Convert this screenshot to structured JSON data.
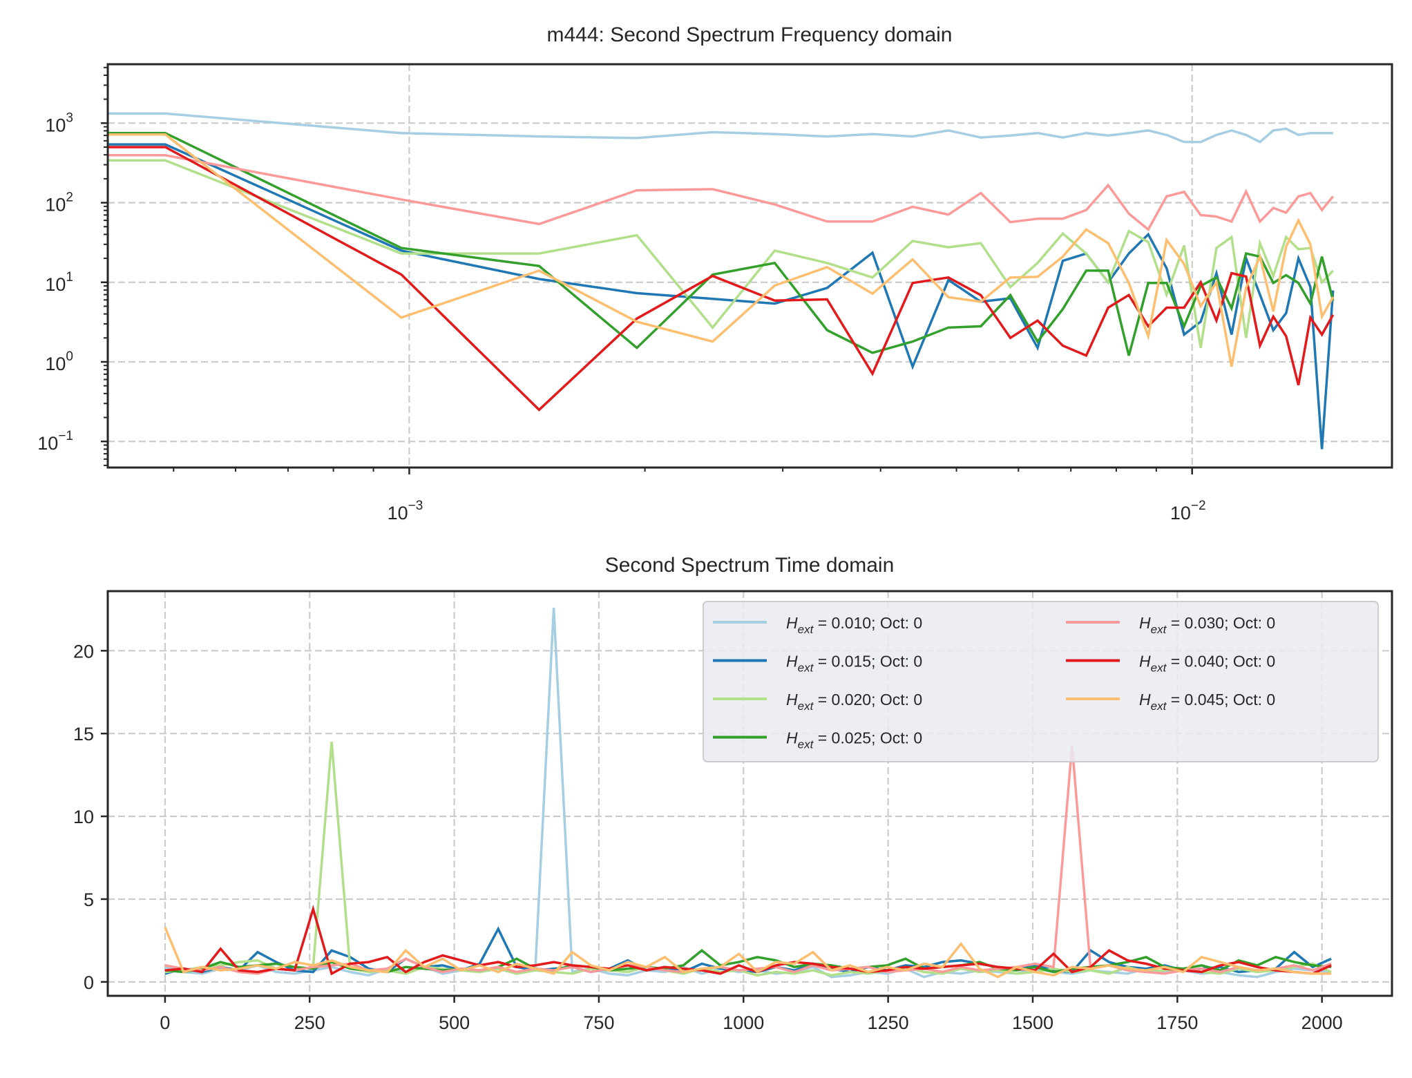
{
  "chart_data": [
    {
      "type": "line",
      "title": "m444: Second Spectrum Frequency domain",
      "xscale": "log",
      "yscale": "log",
      "xlim": [
        0.000412,
        0.018
      ],
      "ylim": [
        0.047,
        5500
      ],
      "grid": true,
      "xticks": [
        {
          "value": 0.001,
          "base": "10",
          "exp": "−3"
        },
        {
          "value": 0.01,
          "base": "10",
          "exp": "−2"
        }
      ],
      "yticks": [
        {
          "value": 1000,
          "base": "10",
          "exp": "3"
        },
        {
          "value": 100,
          "base": "10",
          "exp": "2"
        },
        {
          "value": 10,
          "base": "10",
          "exp": "1"
        },
        {
          "value": 1,
          "base": "10",
          "exp": "0"
        },
        {
          "value": 0.1,
          "base": "10",
          "exp": "−1"
        }
      ],
      "x": [
        0.000412,
        0.000488,
        0.000977,
        0.001465,
        0.001953,
        0.002441,
        0.00293,
        0.003418,
        0.003906,
        0.004395,
        0.004883,
        0.005371,
        0.005859,
        0.006348,
        0.006836,
        0.007324,
        0.007813,
        0.008301,
        0.008789,
        0.009277,
        0.009766,
        0.010254,
        0.010742,
        0.01123,
        0.011719,
        0.012207,
        0.012695,
        0.013184,
        0.013672,
        0.01416,
        0.014648,
        0.015137
      ],
      "series": [
        {
          "name": "0.010",
          "color": "#a6cee3",
          "values": [
            1320,
            1320,
            750,
            680,
            650,
            770,
            730,
            680,
            730,
            680,
            810,
            660,
            700,
            750,
            660,
            750,
            700,
            750,
            810,
            710,
            580,
            580,
            710,
            810,
            710,
            580,
            810,
            850,
            710,
            750,
            750,
            750
          ]
        },
        {
          "name": "0.015",
          "color": "#1f78b4",
          "values": [
            540,
            540,
            25,
            11,
            7.3,
            6.2,
            5.4,
            8.5,
            23.5,
            0.87,
            10.7,
            5.7,
            6.3,
            1.5,
            18.6,
            23,
            10,
            23,
            40,
            15,
            2.2,
            3.2,
            13,
            2.2,
            20,
            7,
            2.5,
            4.1,
            20,
            8.7,
            0.08,
            7.9
          ]
        },
        {
          "name": "0.020",
          "color": "#b2df8a",
          "values": [
            340,
            340,
            23,
            23,
            39,
            2.7,
            25,
            17.5,
            11.5,
            33,
            27.5,
            31,
            8.7,
            17.5,
            41,
            23,
            10,
            44,
            32,
            7,
            29,
            1.5,
            27,
            37,
            2,
            31,
            12,
            37,
            26,
            27,
            10,
            14
          ]
        },
        {
          "name": "0.025",
          "color": "#33a02c",
          "values": [
            750,
            750,
            27,
            16,
            1.5,
            12.5,
            17.5,
            2.5,
            1.3,
            1.8,
            2.7,
            2.8,
            6.9,
            1.8,
            4.6,
            14,
            14,
            1.2,
            9.8,
            9.8,
            2.8,
            9,
            11.5,
            4.7,
            23,
            21,
            9.8,
            12.3,
            9.8,
            5.4,
            21,
            5.9
          ]
        },
        {
          "name": "0.030",
          "color": "#fb9a99",
          "values": [
            395,
            395,
            110,
            54,
            143,
            148,
            95,
            58,
            58,
            89,
            71,
            132,
            57,
            63,
            63,
            81,
            166,
            73,
            46,
            120,
            137,
            70,
            67,
            58,
            138,
            58,
            86,
            75,
            120,
            132,
            81,
            120
          ]
        },
        {
          "name": "0.040",
          "color": "#e31a1c",
          "values": [
            500,
            500,
            12.5,
            0.25,
            3.5,
            12,
            5.9,
            6.1,
            0.71,
            9.8,
            11.5,
            6.9,
            2.0,
            3.3,
            1.6,
            1.2,
            4.8,
            6.9,
            2.8,
            4.8,
            4.8,
            10,
            3.3,
            13,
            11.8,
            1.6,
            3.7,
            2.1,
            0.51,
            3.6,
            2.2,
            3.9
          ]
        },
        {
          "name": "0.045",
          "color": "#fdbf6f",
          "values": [
            720,
            720,
            3.6,
            14,
            3.2,
            1.8,
            9.1,
            15.5,
            7.2,
            19.4,
            6.5,
            5.7,
            11.5,
            11.7,
            21,
            46,
            31,
            9.8,
            2.1,
            34,
            17,
            5,
            10,
            0.87,
            8.5,
            21,
            4.3,
            28,
            60,
            30,
            3.7,
            6.5
          ]
        }
      ]
    },
    {
      "type": "line",
      "title": "Second Spectrum Time domain",
      "xlim": [
        -99,
        2121
      ],
      "ylim": [
        -0.84,
        23.6
      ],
      "grid": true,
      "x_step": 32,
      "xticks": [
        "0",
        "250",
        "500",
        "750",
        "1000",
        "1250",
        "1500",
        "1750",
        "2000"
      ],
      "yticks": [
        "0",
        "5",
        "10",
        "15",
        "20"
      ],
      "legend": {
        "placement": "upper-right",
        "columns": 2
      },
      "series": [
        {
          "label_var": "H",
          "label_sub": "ext",
          "label_rest": " =  0.010; Oct: 0",
          "color": "#a6cee3",
          "values": [
            0.9,
            0.6,
            0.5,
            0.8,
            0.7,
            1.0,
            0.6,
            0.5,
            0.7,
            0.9,
            0.6,
            0.4,
            0.8,
            0.6,
            0.9,
            0.5,
            0.7,
            0.6,
            0.8,
            0.5,
            0.7,
            22.6,
            0.6,
            0.8,
            0.5,
            0.4,
            0.7,
            0.6,
            0.9,
            0.5,
            0.8,
            0.6,
            0.7,
            0.5,
            0.6,
            0.9,
            0.3,
            0.4,
            0.6,
            0.5,
            0.8,
            0.3,
            0.6,
            0.5,
            0.7,
            0.6,
            0.5,
            0.8,
            0.6,
            0.5,
            0.7,
            0.6,
            0.5,
            0.8,
            0.6,
            0.7,
            0.5,
            0.6,
            0.4,
            0.3,
            0.6,
            0.8,
            0.7,
            0.6
          ]
        },
        {
          "label_var": "H",
          "label_sub": "ext",
          "label_rest": " =  0.015; Oct: 0",
          "color": "#1f78b4",
          "values": [
            0.5,
            0.8,
            0.6,
            0.9,
            0.7,
            1.8,
            1.2,
            0.7,
            0.6,
            1.9,
            1.5,
            0.8,
            0.6,
            1.4,
            0.9,
            1.0,
            0.7,
            1.1,
            3.2,
            0.9,
            0.7,
            0.8,
            0.9,
            0.6,
            0.8,
            1.3,
            0.7,
            0.9,
            0.6,
            1.1,
            0.8,
            0.7,
            0.6,
            0.9,
            0.7,
            1.1,
            0.8,
            0.6,
            0.9,
            0.7,
            1.0,
            0.9,
            1.2,
            1.3,
            1.1,
            0.9,
            0.8,
            1.0,
            0.7,
            0.6,
            1.9,
            1.2,
            0.9,
            0.8,
            1.0,
            0.7,
            0.8,
            0.9,
            0.6,
            0.7,
            0.8,
            1.8,
            0.9,
            1.4
          ]
        },
        {
          "label_var": "H",
          "label_sub": "ext",
          "label_rest": " =  0.020; Oct: 0",
          "color": "#b2df8a",
          "values": [
            0.6,
            0.7,
            0.9,
            1.0,
            1.2,
            1.3,
            0.8,
            0.7,
            0.9,
            14.5,
            0.8,
            0.6,
            0.7,
            0.5,
            0.9,
            0.8,
            0.7,
            0.6,
            0.8,
            0.5,
            0.7,
            0.6,
            0.5,
            0.8,
            0.7,
            0.6,
            0.9,
            0.7,
            0.5,
            0.8,
            0.6,
            0.7,
            0.4,
            0.6,
            0.5,
            0.7,
            0.4,
            0.6,
            0.5,
            0.7,
            0.9,
            0.6,
            0.5,
            0.8,
            0.6,
            0.7,
            0.5,
            0.6,
            0.8,
            0.6,
            0.7,
            0.5,
            0.9,
            0.6,
            0.7,
            0.8,
            0.6,
            0.5,
            0.8,
            0.6,
            0.7,
            0.9,
            1.1,
            0.6
          ]
        },
        {
          "label_var": "H",
          "label_sub": "ext",
          "label_rest": " =  0.025; Oct: 0",
          "color": "#33a02c",
          "values": [
            0.7,
            0.6,
            0.8,
            1.2,
            0.9,
            1.0,
            1.1,
            0.9,
            0.8,
            1.2,
            0.8,
            0.7,
            0.6,
            0.9,
            0.8,
            0.7,
            0.8,
            0.7,
            0.9,
            1.4,
            0.8,
            0.7,
            1.0,
            0.9,
            0.7,
            0.8,
            0.9,
            0.8,
            1.0,
            1.9,
            1.0,
            1.2,
            1.5,
            1.3,
            0.9,
            1.1,
            1.0,
            0.8,
            0.9,
            1.0,
            1.4,
            0.8,
            0.9,
            1.0,
            1.2,
            0.8,
            0.7,
            0.9,
            0.6,
            0.8,
            0.9,
            1.0,
            1.2,
            1.5,
            0.9,
            0.8,
            1.0,
            0.7,
            1.3,
            1.0,
            1.5,
            1.2,
            1.0,
            0.9
          ]
        },
        {
          "label_var": "H",
          "label_sub": "ext",
          "label_rest": " =  0.030; Oct: 0",
          "color": "#fb9a99",
          "values": [
            1.0,
            0.8,
            0.7,
            0.9,
            0.6,
            0.5,
            0.8,
            0.7,
            0.9,
            1.0,
            1.1,
            0.7,
            0.8,
            1.4,
            0.9,
            0.6,
            0.8,
            0.7,
            0.9,
            0.6,
            0.8,
            0.7,
            0.9,
            0.6,
            0.8,
            1.0,
            0.9,
            0.7,
            0.6,
            0.8,
            0.9,
            0.7,
            0.8,
            0.9,
            0.6,
            1.0,
            0.7,
            0.8,
            0.9,
            0.6,
            0.7,
            0.8,
            0.6,
            0.9,
            0.7,
            0.8,
            0.9,
            1.1,
            0.9,
            14.3,
            0.8,
            1.0,
            0.7,
            0.6,
            0.5,
            0.7,
            0.8,
            0.6,
            0.9,
            0.7,
            0.8,
            1.0,
            0.7,
            1.1
          ]
        },
        {
          "label_var": "H",
          "label_sub": "ext",
          "label_rest": " =  0.040; Oct: 0",
          "color": "#e31a1c",
          "values": [
            0.7,
            0.8,
            0.6,
            2.0,
            0.7,
            0.6,
            0.8,
            0.7,
            4.4,
            0.5,
            1.1,
            1.2,
            1.5,
            0.6,
            1.2,
            1.6,
            1.3,
            1.0,
            1.2,
            0.9,
            1.0,
            1.2,
            1.0,
            0.9,
            0.8,
            1.0,
            0.7,
            0.9,
            0.8,
            0.7,
            0.5,
            1.0,
            0.6,
            1.0,
            1.2,
            1.1,
            0.9,
            0.8,
            0.6,
            0.7,
            0.9,
            0.8,
            0.9,
            1.0,
            1.1,
            0.9,
            0.8,
            0.7,
            1.7,
            0.6,
            0.9,
            1.9,
            1.3,
            1.1,
            0.8,
            0.7,
            0.6,
            1.0,
            1.2,
            0.9,
            0.7,
            0.6,
            0.5,
            1.0
          ]
        },
        {
          "label_var": "H",
          "label_sub": "ext",
          "label_rest": " =  0.045; Oct: 0",
          "color": "#fdbf6f",
          "values": [
            3.3,
            0.6,
            0.9,
            0.7,
            0.8,
            1.0,
            0.8,
            1.2,
            1.0,
            1.3,
            0.9,
            0.7,
            0.6,
            1.9,
            0.9,
            1.4,
            0.7,
            1.0,
            0.6,
            1.1,
            0.8,
            0.5,
            1.8,
            1.0,
            0.7,
            1.2,
            0.9,
            1.5,
            0.6,
            0.8,
            0.9,
            1.7,
            0.6,
            1.2,
            1.1,
            1.8,
            0.7,
            1.0,
            0.6,
            0.9,
            0.7,
            1.1,
            0.9,
            2.3,
            0.8,
            0.3,
            0.9,
            0.6,
            0.4,
            0.9,
            0.8,
            1.0,
            0.8,
            0.7,
            0.9,
            0.6,
            1.5,
            1.2,
            0.9,
            0.7,
            0.8,
            0.6,
            0.5,
            0.5
          ]
        }
      ]
    }
  ]
}
